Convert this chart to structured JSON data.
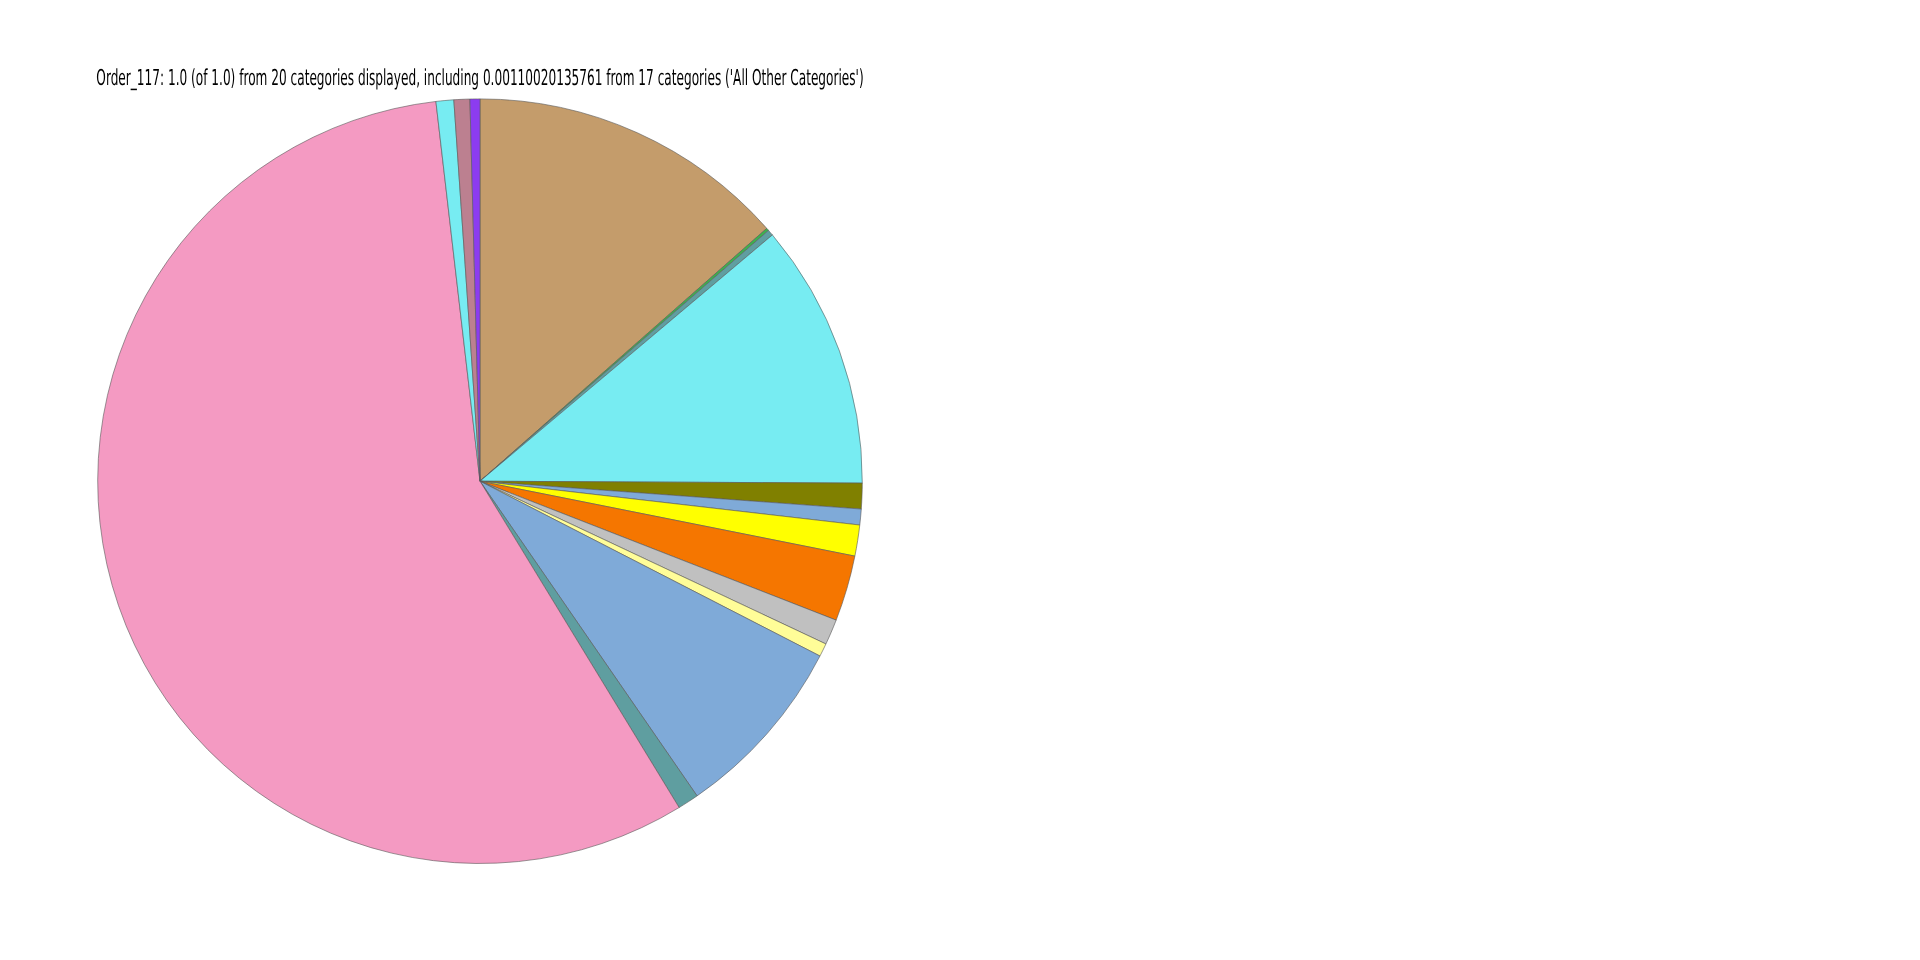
{
  "chart_data": {
    "type": "pie",
    "title": "Order_117: 1.0 (of 1.0) from 20 categories displayed, including 0.00110020135761 from 17 categories ('All Other Categories')",
    "categories": [
      null,
      null,
      null,
      null,
      null,
      null,
      null,
      null,
      null,
      null,
      null,
      null,
      null,
      null,
      null,
      null
    ],
    "values": [
      13.5,
      0.11,
      0.25,
      11.22,
      1.08,
      0.67,
      1.31,
      2.78,
      1.08,
      0.56,
      7.83,
      0.89,
      56.88,
      0.75,
      0.67,
      0.42
    ],
    "colors": [
      "#c49c6b",
      "#3cb44b",
      "#5f9ea0",
      "#77ecf2",
      "#808000",
      "#7faad8",
      "#ffff00",
      "#f57600",
      "#c0c0c0",
      "#fffd98",
      "#7faad8",
      "#5f9ea0",
      "#f49ac2",
      "#77ecf2",
      "#bc8090",
      "#8c3cf0"
    ],
    "legend": false
  }
}
